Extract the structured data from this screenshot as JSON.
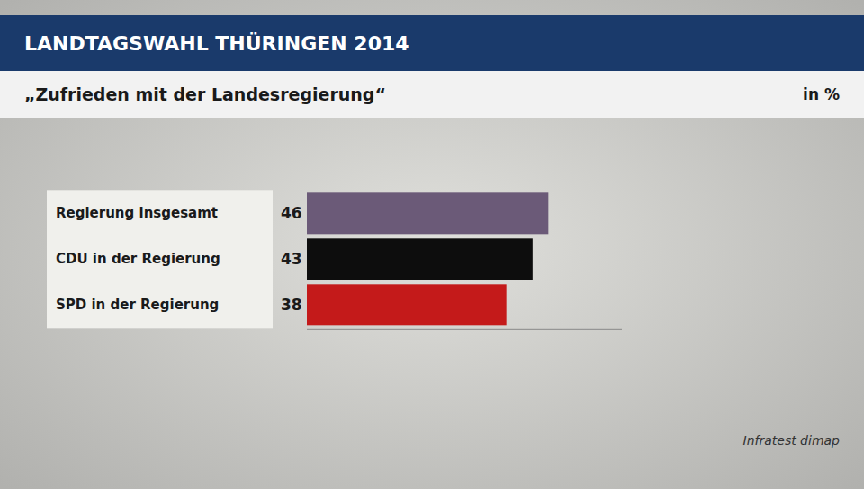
{
  "chart_data": {
    "type": "bar",
    "orientation": "horizontal",
    "title": "LANDTAGSWAHL THÜRINGEN 2014",
    "subtitle": "„Zufrieden mit der Landesregierung“",
    "xlabel": "in %",
    "annotations": [
      "Infratest dimap"
    ],
    "categories": [
      "Regierung insgesamt",
      "CDU in der Regierung",
      "SPD in der Regierung"
    ],
    "values": [
      46,
      43,
      38
    ],
    "colors": [
      "#6b5a78",
      "#0d0d0d",
      "#c41a1a"
    ],
    "xlim": [
      0,
      60
    ],
    "grid": false,
    "tick_labels": false,
    "data_labels": true
  }
}
